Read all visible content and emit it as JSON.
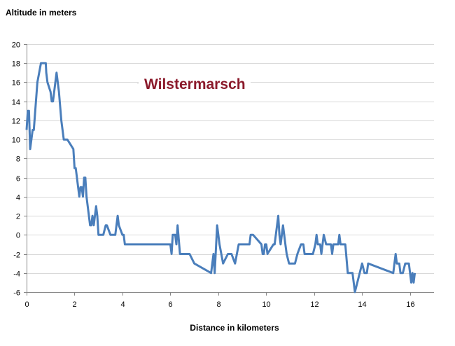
{
  "chart_data": {
    "type": "line",
    "title": "Wilstermarsch",
    "xlabel": "Distance in kilometers",
    "ylabel": "Altitude in meters",
    "xlim": [
      0,
      17
    ],
    "ylim": [
      -6,
      20
    ],
    "x_ticks": [
      0,
      2,
      4,
      6,
      8,
      10,
      12,
      14,
      16
    ],
    "y_ticks": [
      -6,
      -4,
      -2,
      0,
      2,
      4,
      6,
      8,
      10,
      12,
      14,
      16,
      18,
      20
    ],
    "grid": "horizontal",
    "legend": "none",
    "series": [
      {
        "color": "#4a7ebb",
        "points": [
          [
            0.0,
            11
          ],
          [
            0.05,
            13
          ],
          [
            0.1,
            13
          ],
          [
            0.15,
            9
          ],
          [
            0.25,
            11
          ],
          [
            0.3,
            11
          ],
          [
            0.45,
            16
          ],
          [
            0.6,
            18
          ],
          [
            0.8,
            18
          ],
          [
            0.82,
            17
          ],
          [
            0.87,
            16
          ],
          [
            1.0,
            15
          ],
          [
            1.05,
            14
          ],
          [
            1.1,
            14
          ],
          [
            1.25,
            17
          ],
          [
            1.35,
            15
          ],
          [
            1.45,
            12
          ],
          [
            1.55,
            10
          ],
          [
            1.7,
            10
          ],
          [
            1.95,
            9
          ],
          [
            2.0,
            7
          ],
          [
            2.05,
            7
          ],
          [
            2.15,
            5
          ],
          [
            2.2,
            4
          ],
          [
            2.25,
            5
          ],
          [
            2.3,
            5
          ],
          [
            2.35,
            4
          ],
          [
            2.4,
            6
          ],
          [
            2.45,
            6
          ],
          [
            2.5,
            4
          ],
          [
            2.6,
            2
          ],
          [
            2.65,
            1
          ],
          [
            2.7,
            1
          ],
          [
            2.75,
            2
          ],
          [
            2.8,
            1
          ],
          [
            2.85,
            2
          ],
          [
            2.9,
            3
          ],
          [
            2.95,
            2
          ],
          [
            3.0,
            0
          ],
          [
            3.1,
            0
          ],
          [
            3.2,
            0
          ],
          [
            3.3,
            1
          ],
          [
            3.35,
            1
          ],
          [
            3.5,
            0
          ],
          [
            3.7,
            0
          ],
          [
            3.8,
            2
          ],
          [
            3.85,
            1
          ],
          [
            4.0,
            0
          ],
          [
            4.05,
            0
          ],
          [
            4.1,
            -1
          ],
          [
            6.0,
            -1
          ],
          [
            6.05,
            -2
          ],
          [
            6.1,
            0
          ],
          [
            6.2,
            0
          ],
          [
            6.25,
            -1
          ],
          [
            6.3,
            1
          ],
          [
            6.4,
            -2
          ],
          [
            6.8,
            -2
          ],
          [
            7.0,
            -3
          ],
          [
            7.7,
            -4
          ],
          [
            7.8,
            -2
          ],
          [
            7.85,
            -4
          ],
          [
            7.95,
            1
          ],
          [
            8.0,
            0
          ],
          [
            8.05,
            -1
          ],
          [
            8.2,
            -3
          ],
          [
            8.4,
            -2
          ],
          [
            8.55,
            -2
          ],
          [
            8.7,
            -3
          ],
          [
            8.85,
            -1
          ],
          [
            9.0,
            -1
          ],
          [
            9.3,
            -1
          ],
          [
            9.35,
            0
          ],
          [
            9.45,
            0
          ],
          [
            9.8,
            -1
          ],
          [
            9.85,
            -2
          ],
          [
            9.9,
            -2
          ],
          [
            9.95,
            -1
          ],
          [
            10.0,
            -1
          ],
          [
            10.05,
            -2
          ],
          [
            10.3,
            -1
          ],
          [
            10.35,
            -1
          ],
          [
            10.45,
            1
          ],
          [
            10.5,
            2
          ],
          [
            10.55,
            0
          ],
          [
            10.6,
            -1
          ],
          [
            10.7,
            1
          ],
          [
            10.8,
            -1
          ],
          [
            10.85,
            -2
          ],
          [
            10.95,
            -3
          ],
          [
            11.2,
            -3
          ],
          [
            11.3,
            -2
          ],
          [
            11.45,
            -1
          ],
          [
            11.55,
            -1
          ],
          [
            11.6,
            -2
          ],
          [
            11.95,
            -2
          ],
          [
            12.05,
            -1
          ],
          [
            12.1,
            0
          ],
          [
            12.15,
            -1
          ],
          [
            12.25,
            -1
          ],
          [
            12.3,
            -2
          ],
          [
            12.4,
            0
          ],
          [
            12.5,
            -1
          ],
          [
            12.7,
            -1
          ],
          [
            12.75,
            -2
          ],
          [
            12.8,
            -1
          ],
          [
            13.0,
            -1
          ],
          [
            13.05,
            0
          ],
          [
            13.1,
            -1
          ],
          [
            13.3,
            -1
          ],
          [
            13.4,
            -4
          ],
          [
            13.6,
            -4
          ],
          [
            13.7,
            -6
          ],
          [
            13.9,
            -4
          ],
          [
            14.0,
            -3
          ],
          [
            14.1,
            -4
          ],
          [
            14.2,
            -4
          ],
          [
            14.25,
            -3
          ],
          [
            15.3,
            -4
          ],
          [
            15.4,
            -2
          ],
          [
            15.45,
            -3
          ],
          [
            15.55,
            -3
          ],
          [
            15.6,
            -4
          ],
          [
            15.7,
            -4
          ],
          [
            15.8,
            -3
          ],
          [
            15.9,
            -3
          ],
          [
            15.95,
            -3
          ],
          [
            16.05,
            -5
          ],
          [
            16.1,
            -4
          ],
          [
            16.15,
            -5
          ],
          [
            16.2,
            -4
          ]
        ]
      }
    ]
  }
}
